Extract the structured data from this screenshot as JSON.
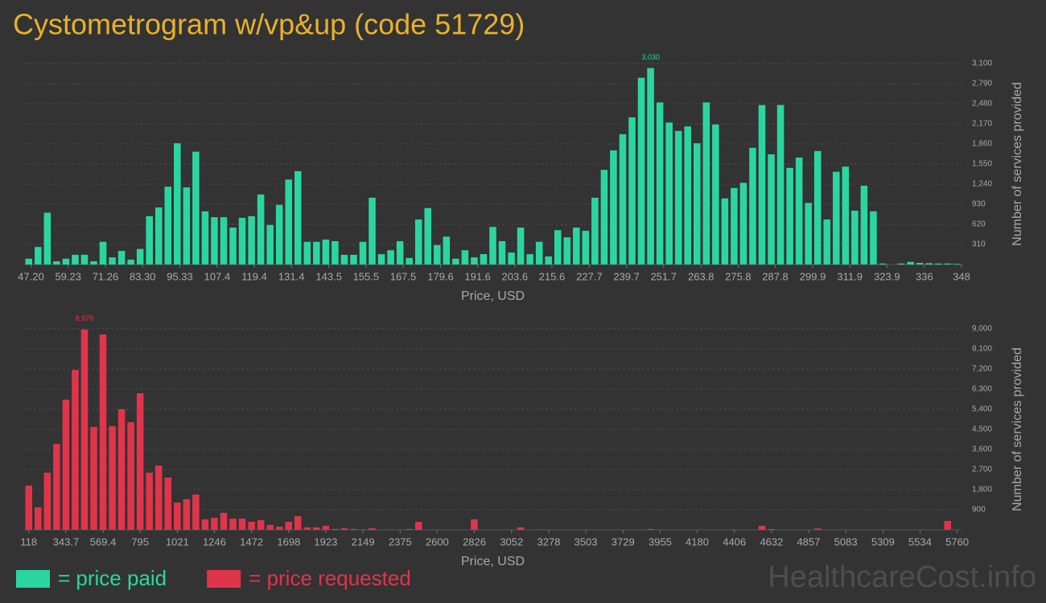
{
  "title": "Cystometrogram w/vp&up (code 51729)",
  "watermark": "HealthcareCost.info",
  "chart_data": [
    {
      "type": "histogram",
      "bins": [
        45,
        48,
        51,
        54,
        57,
        60,
        63,
        66,
        69,
        72,
        75,
        78,
        81,
        84,
        87,
        90,
        93,
        96,
        99,
        102,
        105,
        108,
        111,
        114,
        117,
        120,
        123,
        126,
        129,
        132,
        135,
        138,
        141,
        144,
        147,
        150,
        153,
        156,
        159,
        162,
        165,
        168,
        171,
        174,
        177,
        180,
        183,
        186,
        189,
        192,
        195,
        198,
        201,
        204,
        207,
        210,
        213,
        216,
        219,
        222,
        225,
        228,
        231,
        234,
        237,
        240,
        243,
        246,
        249,
        252,
        255,
        258,
        261,
        264,
        267,
        270,
        273,
        276,
        279,
        282,
        285,
        288,
        291,
        294,
        297,
        300,
        303,
        306,
        309,
        312,
        315,
        318,
        321,
        324,
        327,
        330,
        333,
        336,
        339,
        342,
        345,
        348
      ],
      "series": [
        {
          "name": "= price paid",
          "color": "#2bd69e",
          "values": [
            90,
            270,
            800,
            50,
            90,
            150,
            150,
            50,
            350,
            110,
            210,
            75,
            240,
            745,
            880,
            1200,
            1870,
            1190,
            1740,
            820,
            730,
            730,
            570,
            720,
            745,
            1080,
            610,
            920,
            1310,
            1440,
            350,
            350,
            385,
            360,
            150,
            150,
            350,
            1030,
            160,
            220,
            360,
            100,
            695,
            870,
            300,
            430,
            90,
            220,
            110,
            160,
            580,
            360,
            185,
            570,
            160,
            350,
            125,
            530,
            420,
            570,
            520,
            1030,
            1460,
            1760,
            2010,
            2270,
            2880,
            3030,
            2500,
            2190,
            2060,
            2130,
            1870,
            2500,
            2160,
            1020,
            1180,
            1260,
            1800,
            2460,
            1700,
            2460,
            1490,
            1650,
            950,
            1750,
            695,
            1430,
            1510,
            830,
            1215,
            820,
            15,
            0,
            15,
            40,
            25,
            20,
            15,
            15,
            10
          ]
        }
      ],
      "peak_label": "3,030",
      "xlim": [
        45,
        348
      ],
      "xticks": [
        {
          "value": 47.2,
          "label": "47.20"
        },
        59.23,
        71.26,
        {
          "value": 83.3,
          "label": "83.30"
        },
        95.33,
        107.4,
        119.4,
        131.4,
        143.5,
        155.5,
        167.5,
        179.6,
        191.6,
        203.6,
        215.6,
        227.7,
        239.7,
        251.7,
        263.8,
        275.8,
        287.8,
        299.9,
        311.9,
        323.9,
        336,
        348
      ],
      "ylim": [
        0,
        3100
      ],
      "yticks": [
        310,
        620,
        930,
        {
          "value": 1240,
          "label": "1,240"
        },
        {
          "value": 1550,
          "label": "1,550"
        },
        {
          "value": 1860,
          "label": "1,860"
        },
        {
          "value": 2170,
          "label": "2,170"
        },
        {
          "value": 2480,
          "label": "2,480"
        },
        {
          "value": 2790,
          "label": "2,790"
        },
        {
          "value": 3100,
          "label": "3,100"
        }
      ],
      "xlabel": "Price, USD",
      "ylabel": "Number of services provided",
      "grid": true
    },
    {
      "type": "histogram",
      "bins": [
        90,
        146.4,
        202.8,
        259.2,
        315.6,
        372,
        428.4,
        484.8,
        541.2,
        597.6,
        654,
        710.4,
        766.8,
        823.2,
        879.6,
        936,
        992.4,
        1048.8,
        1105.2,
        1161.6,
        1218,
        1274.4,
        1330.8,
        1387.2,
        1443.6,
        1500,
        1556.4,
        1612.8,
        1669.2,
        1725.6,
        1782,
        1838.4,
        1894.8,
        1951.2,
        2007.6,
        2064,
        2120.4,
        2176.8,
        2233.2,
        2289.6,
        2346,
        2402.4,
        2458.8,
        2515.2,
        2571.6,
        2628,
        2684.4,
        2740.8,
        2797.2,
        2853.6,
        2910,
        2966.4,
        3022.8,
        3079.2,
        3135.6,
        3192,
        3248.4,
        3304.8,
        3361.2,
        3417.6,
        3474,
        3530.4,
        3586.8,
        3643.2,
        3699.6,
        3756,
        3812.4,
        3868.8,
        3925.2,
        3981.6,
        4038,
        4094.4,
        4150.8,
        4207.2,
        4263.6,
        4320,
        4376.4,
        4432.8,
        4489.2,
        4545.6,
        4602,
        4658.4,
        4714.8,
        4771.2,
        4827.6,
        4884,
        4940.4,
        4996.8,
        5053.2,
        5109.6,
        5166,
        5222.4,
        5278.8,
        5335.2,
        5391.6,
        5448,
        5504.4,
        5560.8,
        5617.2,
        5673.6,
        5730,
        5786.4
      ],
      "series": [
        {
          "name": "= price requested",
          "color": "#e0344b",
          "values": [
            1980,
            1010,
            2560,
            3850,
            5830,
            7160,
            8970,
            4610,
            8750,
            4640,
            5400,
            4820,
            6120,
            2560,
            2880,
            2340,
            1220,
            1370,
            1580,
            470,
            540,
            760,
            500,
            500,
            360,
            430,
            220,
            140,
            360,
            610,
            110,
            110,
            180,
            40,
            70,
            40,
            20,
            70,
            10,
            15,
            10,
            40,
            360,
            0,
            0,
            0,
            0,
            0,
            470,
            0,
            0,
            0,
            0,
            110,
            0,
            20,
            0,
            0,
            0,
            0,
            0,
            0,
            0,
            0,
            0,
            0,
            0,
            40,
            0,
            0,
            0,
            0,
            0,
            0,
            0,
            0,
            20,
            0,
            0,
            180,
            40,
            0,
            0,
            0,
            0,
            60,
            0,
            0,
            0,
            0,
            0,
            0,
            0,
            0,
            0,
            0,
            0,
            0,
            0,
            400,
            0
          ]
        }
      ],
      "peak_label": "8,970",
      "xlim": [
        90,
        5786.4
      ],
      "xticks": [
        118,
        343.7,
        569.4,
        795,
        1021,
        1246,
        1472,
        1698,
        1923,
        2149,
        2375,
        2600,
        2826,
        3052,
        3278,
        3503,
        3729,
        3955,
        4180,
        4406,
        4632,
        4857,
        5083,
        5309,
        5534,
        5760
      ],
      "ylim": [
        0,
        9000
      ],
      "yticks": [
        900,
        {
          "value": 1800,
          "label": "1,800"
        },
        {
          "value": 2700,
          "label": "2,700"
        },
        {
          "value": 3600,
          "label": "3,600"
        },
        {
          "value": 4500,
          "label": "4,500"
        },
        {
          "value": 5400,
          "label": "5,400"
        },
        {
          "value": 6300,
          "label": "6,300"
        },
        {
          "value": 7200,
          "label": "7,200"
        },
        {
          "value": 8100,
          "label": "8,100"
        },
        {
          "value": 9000,
          "label": "9,000"
        }
      ],
      "xlabel": "Price, USD",
      "ylabel": "Number of services provided",
      "grid": true
    }
  ]
}
